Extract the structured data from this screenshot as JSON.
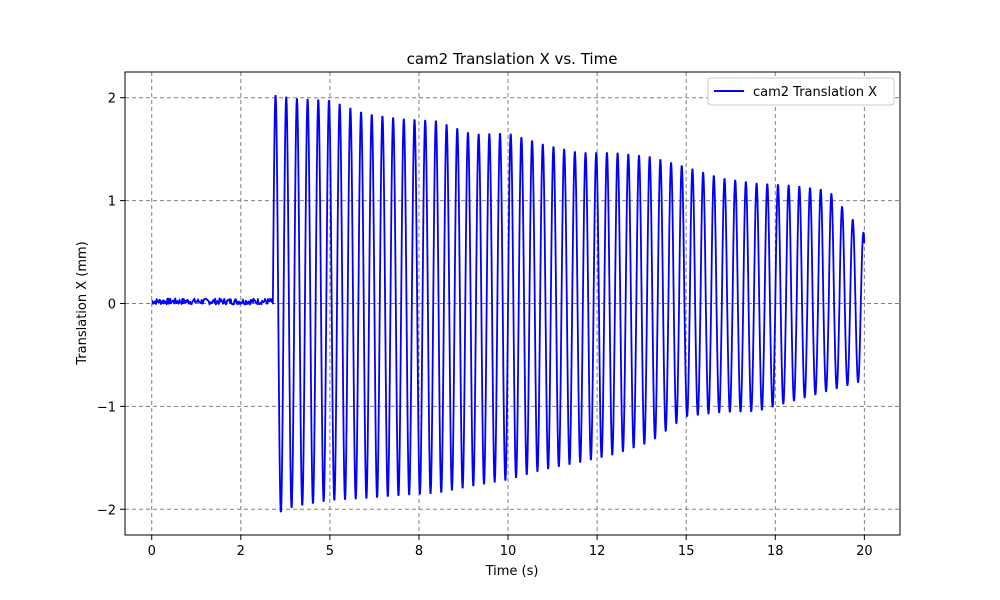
{
  "chart_data": {
    "type": "line",
    "title": "cam2 Translation X vs. Time",
    "xlabel": "Time (s)",
    "ylabel": "Translation X (mm)",
    "xlim": [
      -0.75,
      21.0
    ],
    "ylim": [
      -2.25,
      2.25
    ],
    "grid": true,
    "legend_position": "top-right",
    "x_ticks": [
      {
        "value": 0,
        "label": "0"
      },
      {
        "value": 2.5,
        "label": "2"
      },
      {
        "value": 5,
        "label": "5"
      },
      {
        "value": 7.5,
        "label": "8"
      },
      {
        "value": 10,
        "label": "10"
      },
      {
        "value": 12.5,
        "label": "12"
      },
      {
        "value": 15,
        "label": "15"
      },
      {
        "value": 17.5,
        "label": "18"
      },
      {
        "value": 20,
        "label": "20"
      }
    ],
    "y_ticks": [
      {
        "value": 2,
        "label": "2"
      },
      {
        "value": 1,
        "label": "1"
      },
      {
        "value": 0,
        "label": "0"
      },
      {
        "value": -1,
        "label": "−1"
      },
      {
        "value": -2,
        "label": "−2"
      }
    ],
    "series": [
      {
        "name": "cam2 Translation X",
        "color": "#0000ff",
        "pre_signal": {
          "t_start": 0.0,
          "t_end": 3.4,
          "baseline": 0.02,
          "noise": 0.03
        },
        "oscillation": {
          "t_start": 3.4,
          "t_end": 20.0,
          "period": 0.3,
          "peaks": [
            [
              3.5,
              2.03
            ],
            [
              4.0,
              2.0
            ],
            [
              5.0,
              1.98
            ],
            [
              6.0,
              1.85
            ],
            [
              7.0,
              1.8
            ],
            [
              8.0,
              1.78
            ],
            [
              9.0,
              1.65
            ],
            [
              10.0,
              1.66
            ],
            [
              11.0,
              1.55
            ],
            [
              12.0,
              1.47
            ],
            [
              13.0,
              1.47
            ],
            [
              14.0,
              1.43
            ],
            [
              15.0,
              1.33
            ],
            [
              16.0,
              1.22
            ],
            [
              17.0,
              1.17
            ],
            [
              18.0,
              1.15
            ],
            [
              19.0,
              1.1
            ],
            [
              20.0,
              0.68
            ]
          ],
          "troughs": [
            [
              3.5,
              -2.05
            ],
            [
              4.0,
              -1.98
            ],
            [
              5.0,
              -1.92
            ],
            [
              6.0,
              -1.9
            ],
            [
              7.0,
              -1.87
            ],
            [
              8.0,
              -1.85
            ],
            [
              9.0,
              -1.78
            ],
            [
              10.0,
              -1.72
            ],
            [
              11.0,
              -1.62
            ],
            [
              12.0,
              -1.55
            ],
            [
              13.0,
              -1.47
            ],
            [
              14.0,
              -1.35
            ],
            [
              15.0,
              -1.1
            ],
            [
              16.0,
              -1.06
            ],
            [
              17.0,
              -1.05
            ],
            [
              18.0,
              -0.95
            ],
            [
              19.0,
              -0.85
            ],
            [
              20.0,
              -0.75
            ]
          ]
        }
      }
    ]
  }
}
